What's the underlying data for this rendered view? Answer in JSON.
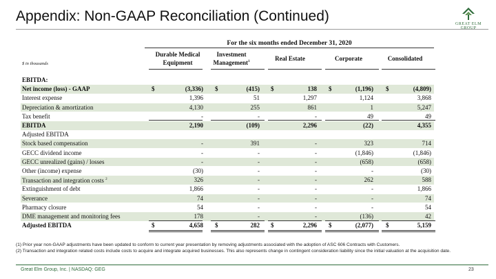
{
  "title": "Appendix: Non-GAAP Reconciliation (Continued)",
  "logo_text": "GREAT ELM GROUP",
  "period_header": "For the six months ended December 31, 2020",
  "units_label": "$ in thousands",
  "columns": [
    {
      "line1": "Durable Medical",
      "line2": "Equipment",
      "sup": ""
    },
    {
      "line1": "Investment",
      "line2": "Management",
      "sup": "1"
    },
    {
      "line1": "Real Estate",
      "line2": "",
      "sup": ""
    },
    {
      "line1": "Corporate",
      "line2": "",
      "sup": ""
    },
    {
      "line1": "Consolidated",
      "line2": "",
      "sup": ""
    }
  ],
  "rows": [
    {
      "label": "EBITDA:",
      "sup": "",
      "values": [
        "",
        "",
        "",
        "",
        ""
      ],
      "currency": false,
      "shade": false,
      "bold": true
    },
    {
      "label": "Net income (loss) - GAAP",
      "sup": "",
      "values": [
        "(3,336)",
        "(415)",
        "138",
        "(1,196)",
        "(4,809)"
      ],
      "currency": true,
      "shade": true,
      "bold": true
    },
    {
      "label": "Interest expense",
      "sup": "",
      "values": [
        "1,396",
        "51",
        "1,297",
        "1,124",
        "3,868"
      ],
      "currency": false,
      "shade": false,
      "bold": false
    },
    {
      "label": "Depreciation & amortization",
      "sup": "",
      "values": [
        "4,130",
        "255",
        "861",
        "1",
        "5,247"
      ],
      "currency": false,
      "shade": true,
      "bold": false
    },
    {
      "label": "Tax benefit",
      "sup": "",
      "values": [
        "-",
        "-",
        "-",
        "49",
        "49"
      ],
      "currency": false,
      "shade": false,
      "bold": false,
      "underline": true
    },
    {
      "label": "EBITDA",
      "sup": "",
      "values": [
        "2,190",
        "(109)",
        "2,296",
        "(22)",
        "4,355"
      ],
      "currency": false,
      "shade": true,
      "bold": true
    },
    {
      "label": "Adjusted EBITDA",
      "sup": "",
      "values": [
        "",
        "",
        "",
        "",
        ""
      ],
      "currency": false,
      "shade": false,
      "bold": false
    },
    {
      "label": "Stock based compensation",
      "sup": "",
      "values": [
        "-",
        "391",
        "-",
        "323",
        "714"
      ],
      "currency": false,
      "shade": true,
      "bold": false
    },
    {
      "label": "GECC dividend income",
      "sup": "",
      "values": [
        "-",
        "-",
        "-",
        "(1,846)",
        "(1,846)"
      ],
      "currency": false,
      "shade": false,
      "bold": false
    },
    {
      "label": "GECC unrealized (gains) /  losses",
      "sup": "",
      "values": [
        "-",
        "-",
        "-",
        "(658)",
        "(658)"
      ],
      "currency": false,
      "shade": true,
      "bold": false
    },
    {
      "label": "Other (income) expense",
      "sup": "",
      "values": [
        "(30)",
        "-",
        "-",
        "-",
        "(30)"
      ],
      "currency": false,
      "shade": false,
      "bold": false
    },
    {
      "label": "Transaction and integration costs",
      "sup": "2",
      "values": [
        "326",
        "-",
        "-",
        "262",
        "588"
      ],
      "currency": false,
      "shade": true,
      "bold": false
    },
    {
      "label": "Extinguishment of debt",
      "sup": "",
      "values": [
        "1,866",
        "-",
        "-",
        "-",
        "1,866"
      ],
      "currency": false,
      "shade": false,
      "bold": false
    },
    {
      "label": "Severance",
      "sup": "",
      "values": [
        "74",
        "-",
        "-",
        "-",
        "74"
      ],
      "currency": false,
      "shade": true,
      "bold": false
    },
    {
      "label": "Pharmacy closure",
      "sup": "",
      "values": [
        "54",
        "-",
        "-",
        "-",
        "54"
      ],
      "currency": false,
      "shade": false,
      "bold": false
    },
    {
      "label": "DME management and monitoring fees",
      "sup": "",
      "values": [
        "178",
        "-",
        "-",
        "(136)",
        "42"
      ],
      "currency": false,
      "shade": true,
      "bold": false,
      "underline": true
    },
    {
      "label": "Adjusted EBITDA",
      "sup": "",
      "values": [
        "4,658",
        "282",
        "2,296",
        "(2,077)",
        "5,159"
      ],
      "currency": true,
      "shade": false,
      "bold": true,
      "double": true
    }
  ],
  "currency_symbol": "$",
  "footnotes": [
    "(1) Prior year non-GAAP adjustments have been updated to conform to current year presentation by removing adjustments associated with the adoption of ASC 606 Contracts with Customers.",
    "(2) Transaction and integration related costs include costs to acquire and integrate acquired businesses.  This also represents change in contingent consideration liability since the initial valuation at the acquisition date."
  ],
  "footer": "Great Elm Group, Inc. | NASDAQ: GEG",
  "page_number": "23",
  "colors": {
    "brand_green": "#2e6b3a",
    "row_shade": "#dfe8d8"
  }
}
